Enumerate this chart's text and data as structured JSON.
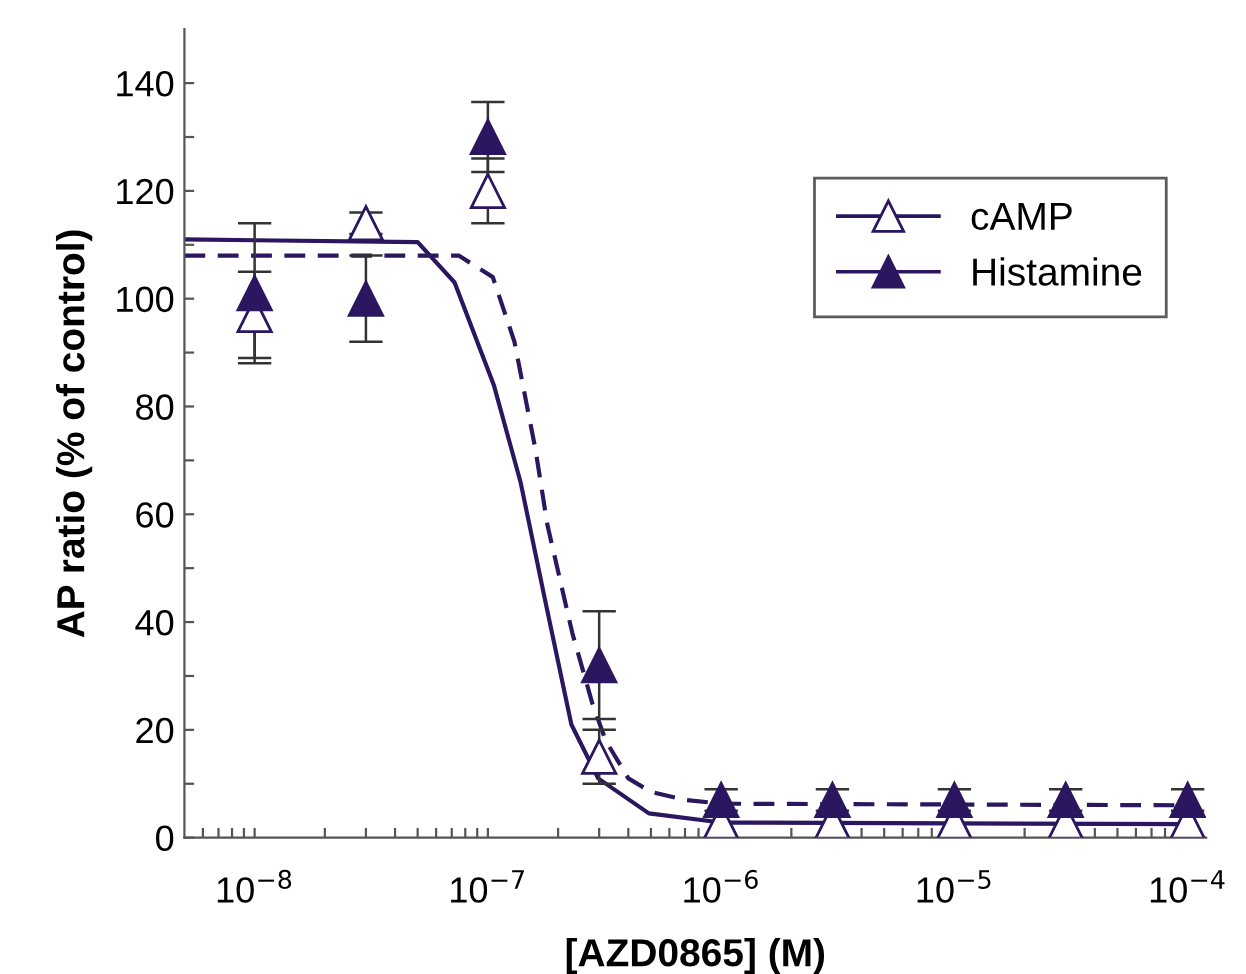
{
  "chart_data": {
    "type": "scatter",
    "xlabel": "[AZD0865] (M)",
    "ylabel": "AP ratio (% of control)",
    "log": "x",
    "xlim": [
      5e-09,
      0.00012
    ],
    "ylim": [
      0,
      150
    ],
    "xticks": [
      {
        "value": 6e-09,
        "label": null
      },
      {
        "value": 7e-09,
        "label": null
      },
      {
        "value": 8e-09,
        "label": null
      },
      {
        "value": 9e-09,
        "label": null
      },
      {
        "value": 1e-08,
        "label": "10$^{−8}$"
      },
      {
        "value": 2e-08,
        "label": null
      },
      {
        "value": 3e-08,
        "label": null
      },
      {
        "value": 4e-08,
        "label": null
      },
      {
        "value": 5e-08,
        "label": null
      },
      {
        "value": 6e-08,
        "label": null
      },
      {
        "value": 7e-08,
        "label": null
      },
      {
        "value": 8e-08,
        "label": null
      },
      {
        "value": 9e-08,
        "label": null
      },
      {
        "value": 1e-07,
        "label": "10$^{−7}$"
      },
      {
        "value": 2e-07,
        "label": null
      },
      {
        "value": 3e-07,
        "label": null
      },
      {
        "value": 4e-07,
        "label": null
      },
      {
        "value": 5e-07,
        "label": null
      },
      {
        "value": 6e-07,
        "label": null
      },
      {
        "value": 7e-07,
        "label": null
      },
      {
        "value": 8e-07,
        "label": null
      },
      {
        "value": 9e-07,
        "label": null
      },
      {
        "value": 1e-06,
        "label": "10$^{−6}$"
      },
      {
        "value": 2e-06,
        "label": null
      },
      {
        "value": 3e-06,
        "label": null
      },
      {
        "value": 4e-06,
        "label": null
      },
      {
        "value": 5e-06,
        "label": null
      },
      {
        "value": 6e-06,
        "label": null
      },
      {
        "value": 7e-06,
        "label": null
      },
      {
        "value": 8e-06,
        "label": null
      },
      {
        "value": 9e-06,
        "label": null
      },
      {
        "value": 1e-05,
        "label": "10$^{−5}$"
      },
      {
        "value": 2e-05,
        "label": null
      },
      {
        "value": 3e-05,
        "label": null
      },
      {
        "value": 4e-05,
        "label": null
      },
      {
        "value": 5e-05,
        "label": null
      },
      {
        "value": 6e-05,
        "label": null
      },
      {
        "value": 7e-05,
        "label": null
      },
      {
        "value": 8e-05,
        "label": null
      },
      {
        "value": 9e-05,
        "label": null
      },
      {
        "value": 0.0001,
        "label": "10$^{−4}$"
      }
    ],
    "yticks": [
      0,
      {
        "value": 10,
        "label": null
      },
      20,
      {
        "value": 30,
        "label": null
      },
      40,
      {
        "value": 50,
        "label": null
      },
      60,
      {
        "value": 70,
        "label": null
      },
      80,
      {
        "value": 90,
        "label": null
      },
      100,
      {
        "value": 110,
        "label": null
      },
      120,
      {
        "value": 130,
        "label": null
      },
      140
    ],
    "legend": "right",
    "grid": false,
    "series": [
      {
        "name": "cAMP",
        "marker": "triangle",
        "color": "#2b1660",
        "x": [
          1e-08,
          3e-08,
          1e-07,
          3e-07,
          1e-06,
          3e-06,
          1e-05,
          3e-05,
          0.0001
        ],
        "values": [
          97,
          114,
          120,
          15,
          3,
          3,
          3,
          3,
          3
        ],
        "errors": [
          8,
          2,
          6,
          5,
          null,
          null,
          null,
          null,
          null
        ]
      },
      {
        "name": "Histamine",
        "marker": "triangle",
        "color": "#2b1660",
        "x": [
          1e-08,
          3e-08,
          1e-07,
          3e-07,
          1e-06,
          3e-06,
          1e-05,
          3e-05,
          0.0001
        ],
        "values": [
          101,
          100,
          130,
          32,
          7,
          7,
          7,
          7,
          7
        ],
        "errors": [
          13,
          8,
          6.5,
          10,
          2,
          2,
          2,
          2,
          2
        ]
      },
      {
        "type": "line",
        "line_style": "solid",
        "color": "#2b1660",
        "x": [
          5e-09,
          5e-08,
          7.2e-08,
          1.06e-07,
          1.38e-07,
          1.78e-07,
          2.28e-07,
          2.97e-07,
          4.9e-07,
          1e-06,
          0.0001
        ],
        "values": [
          111,
          110.5,
          103,
          84,
          66,
          43,
          21,
          11,
          4.5,
          2.8,
          2.5
        ]
      },
      {
        "type": "line",
        "line_style": "dashed",
        "color": "#2b1660",
        "x": [
          5e-09,
          7.5e-08,
          1.05e-07,
          1.3e-07,
          1.6e-07,
          1.8e-07,
          2.3e-07,
          2.8e-07,
          3.2e-07,
          4e-07,
          5e-07,
          7e-07,
          1e-06,
          0.0001
        ],
        "values": [
          108,
          108,
          104,
          92,
          72,
          58,
          38,
          25,
          18,
          11,
          8.5,
          7,
          6.3,
          6
        ]
      }
    ]
  }
}
